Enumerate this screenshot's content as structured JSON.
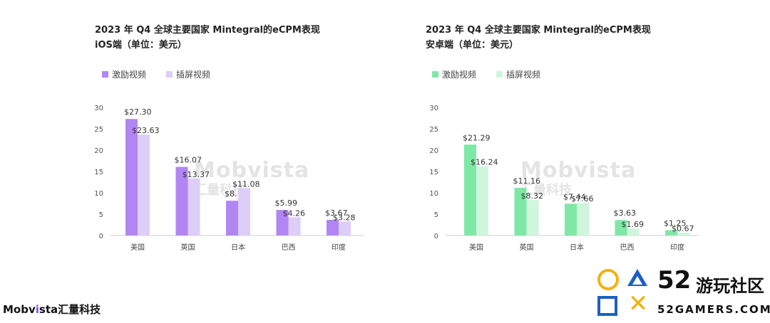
{
  "chart_data": [
    {
      "type": "bar",
      "title": "2023 年 Q4 全球主要国家 Mintegral的eCPM表现",
      "subtitle": "iOS端（单位：美元）",
      "categories": [
        "美国",
        "英国",
        "日本",
        "巴西",
        "印度"
      ],
      "series": [
        {
          "name": "激励视频",
          "values": [
            27.3,
            16.07,
            8.14,
            5.99,
            3.67
          ],
          "labels": [
            "$27.30",
            "$16.07",
            "$8.14",
            "$5.99",
            "$3.67"
          ]
        },
        {
          "name": "插屏视频",
          "values": [
            23.63,
            13.37,
            11.08,
            4.26,
            3.28
          ],
          "labels": [
            "$23.63",
            "$13.37",
            "$11.08",
            "$4.26",
            "$3.28"
          ]
        }
      ],
      "yticks": [
        "0",
        "5",
        "10",
        "15",
        "20",
        "25",
        "30"
      ],
      "ylim": [
        0,
        30
      ],
      "colors": [
        "#b286f2",
        "#ddcdf9"
      ],
      "watermark": [
        "Mobvista",
        "汇量科技"
      ]
    },
    {
      "type": "bar",
      "title": "2023 年 Q4 全球主要国家 Mintegral的eCPM表现",
      "subtitle": "安卓端（单位：美元）",
      "categories": [
        "美国",
        "英国",
        "日本",
        "巴西",
        "印度"
      ],
      "series": [
        {
          "name": "激励视频",
          "values": [
            21.29,
            11.16,
            7.44,
            3.63,
            1.25
          ],
          "labels": [
            "$21.29",
            "$11.16",
            "$7.44",
            "$3.63",
            "$1.25"
          ]
        },
        {
          "name": "插屏视频",
          "values": [
            16.24,
            8.32,
            7.66,
            1.69,
            0.67
          ],
          "labels": [
            "$16.24",
            "$8.32",
            "$7.66",
            "$1.69",
            "$0.67"
          ]
        }
      ],
      "yticks": [
        "0",
        "5",
        "10",
        "15",
        "20",
        "25",
        "30"
      ],
      "ylim": [
        0,
        30
      ],
      "colors": [
        "#7ee8a6",
        "#cff5dd"
      ],
      "watermark": [
        "Mobvista",
        "汇量科技"
      ]
    }
  ],
  "footer": {
    "brand_prefix": "Mobv",
    "brand_accent": "i",
    "brand_suffix": "sta",
    "brand_cn": "汇量科技"
  },
  "site_logo": {
    "number": "52",
    "name": "游玩社区",
    "url": "52GAMERS.COM"
  }
}
